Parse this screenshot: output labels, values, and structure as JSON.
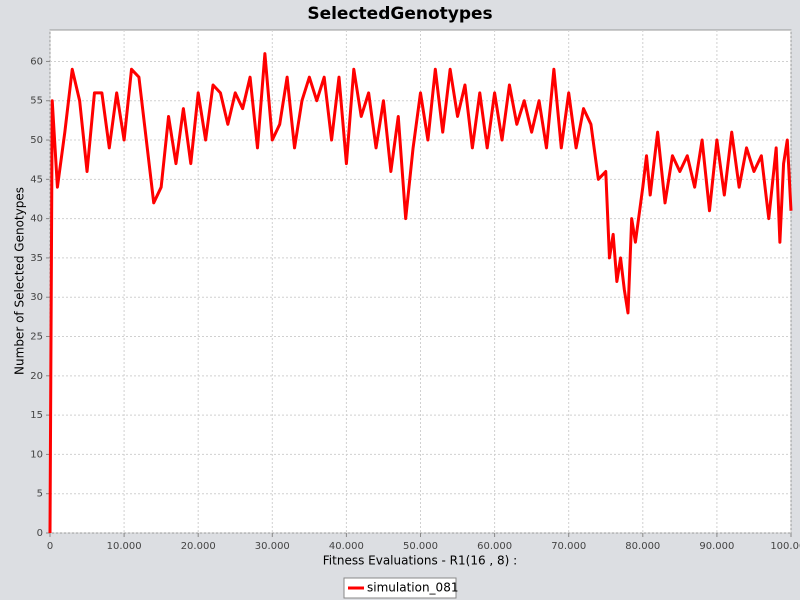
{
  "chart_data": {
    "type": "line",
    "title": "SelectedGenotypes",
    "x_label": "Fitness Evaluations - R1(16 , 8) :",
    "y_label": "Number of Selected Genotypes",
    "x": [
      0,
      300,
      1000,
      2000,
      3000,
      4000,
      5000,
      6000,
      7000,
      8000,
      9000,
      10000,
      11000,
      12000,
      13000,
      14000,
      15000,
      16000,
      17000,
      18000,
      19000,
      20000,
      21000,
      22000,
      23000,
      24000,
      25000,
      26000,
      27000,
      28000,
      29000,
      30000,
      31000,
      32000,
      33000,
      34000,
      35000,
      36000,
      37000,
      38000,
      39000,
      40000,
      41000,
      42000,
      43000,
      44000,
      45000,
      46000,
      47000,
      48000,
      49000,
      50000,
      51000,
      52000,
      53000,
      54000,
      55000,
      56000,
      57000,
      58000,
      59000,
      60000,
      61000,
      62000,
      63000,
      64000,
      65000,
      66000,
      67000,
      68000,
      69000,
      70000,
      71000,
      72000,
      73000,
      74000,
      75000,
      75500,
      76000,
      76500,
      77000,
      77500,
      78000,
      78500,
      79000,
      80000,
      80500,
      81000,
      82000,
      83000,
      84000,
      85000,
      86000,
      87000,
      88000,
      89000,
      90000,
      91000,
      92000,
      93000,
      94000,
      95000,
      96000,
      97000,
      98000,
      98500,
      99000,
      99500,
      100000
    ],
    "series": [
      {
        "name": "simulation_081",
        "color": "#ff0000",
        "values": [
          0,
          55,
          44,
          51,
          59,
          55,
          46,
          56,
          56,
          49,
          56,
          50,
          59,
          58,
          50,
          42,
          44,
          53,
          47,
          54,
          47,
          56,
          50,
          57,
          56,
          52,
          56,
          54,
          58,
          49,
          61,
          50,
          52,
          58,
          49,
          55,
          58,
          55,
          58,
          50,
          58,
          47,
          59,
          53,
          56,
          49,
          55,
          46,
          53,
          40,
          49,
          56,
          50,
          59,
          51,
          59,
          53,
          57,
          49,
          56,
          49,
          56,
          50,
          57,
          52,
          55,
          51,
          55,
          49,
          59,
          49,
          56,
          49,
          54,
          52,
          45,
          46,
          35,
          38,
          32,
          35,
          31,
          28,
          40,
          37,
          44,
          48,
          43,
          51,
          42,
          48,
          46,
          48,
          44,
          50,
          41,
          50,
          43,
          51,
          44,
          49,
          46,
          48,
          40,
          49,
          37,
          47,
          50,
          41
        ]
      }
    ],
    "xlim": [
      0,
      100000
    ],
    "ylim": [
      0,
      64
    ],
    "xticks": [
      0,
      {
        "value": 10000,
        "label": "10.000"
      },
      {
        "value": 20000,
        "label": "20.000"
      },
      {
        "value": 30000,
        "label": "30.000"
      },
      {
        "value": 40000,
        "label": "40.000"
      },
      {
        "value": 50000,
        "label": "50.000"
      },
      {
        "value": 60000,
        "label": "60.000"
      },
      {
        "value": 70000,
        "label": "70.000"
      },
      {
        "value": 80000,
        "label": "80.000"
      },
      {
        "value": 90000,
        "label": "90.000"
      },
      {
        "value": 100000,
        "label": "100.000"
      }
    ],
    "yticks": [
      0,
      5,
      10,
      15,
      20,
      25,
      30,
      35,
      40,
      45,
      50,
      55,
      60
    ],
    "grid": true,
    "legend": "bottom"
  }
}
